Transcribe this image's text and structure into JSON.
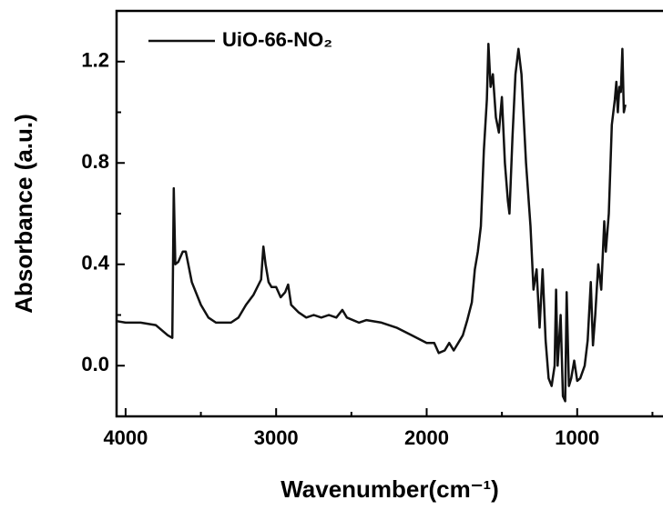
{
  "chart_data": {
    "type": "line",
    "x_label": "Wavenumber(cm⁻¹)",
    "y_label": "Absorbance (a.u.)",
    "xlim": [
      4060,
      436
    ],
    "ylim": [
      -0.2,
      1.4
    ],
    "xticks": [
      4000,
      3000,
      2000,
      1000
    ],
    "yticks": [
      {
        "value": 0,
        "label": "0.0"
      },
      0.4,
      0.8,
      1.2
    ],
    "xminorticks": [
      3500,
      2500,
      1500,
      500
    ],
    "yminorticks": [
      -0.2,
      0.2,
      0.6,
      1.0
    ],
    "legend": "upper left",
    "series": [
      {
        "name": "UiO-66-NO₂",
        "color": "#111111",
        "x": [
          4060,
          4000,
          3900,
          3800,
          3720,
          3690,
          3680,
          3670,
          3650,
          3620,
          3600,
          3560,
          3500,
          3450,
          3400,
          3300,
          3250,
          3200,
          3150,
          3100,
          3085,
          3070,
          3050,
          3030,
          3000,
          2970,
          2940,
          2920,
          2900,
          2850,
          2800,
          2750,
          2700,
          2650,
          2600,
          2560,
          2530,
          2450,
          2400,
          2300,
          2200,
          2100,
          2000,
          1950,
          1920,
          1880,
          1850,
          1820,
          1790,
          1760,
          1730,
          1700,
          1680,
          1660,
          1640,
          1620,
          1600,
          1590,
          1575,
          1560,
          1540,
          1520,
          1500,
          1480,
          1460,
          1450,
          1430,
          1410,
          1390,
          1370,
          1340,
          1310,
          1290,
          1270,
          1250,
          1230,
          1210,
          1190,
          1170,
          1150,
          1140,
          1130,
          1110,
          1095,
          1080,
          1070,
          1055,
          1040,
          1020,
          1000,
          980,
          950,
          930,
          910,
          895,
          880,
          860,
          840,
          820,
          810,
          790,
          770,
          750,
          740,
          730,
          720,
          710,
          700,
          690,
          680
        ],
        "values": [
          0.176,
          0.17,
          0.17,
          0.16,
          0.12,
          0.11,
          0.7,
          0.4,
          0.41,
          0.45,
          0.45,
          0.33,
          0.24,
          0.19,
          0.17,
          0.17,
          0.19,
          0.24,
          0.28,
          0.34,
          0.47,
          0.4,
          0.33,
          0.31,
          0.31,
          0.27,
          0.29,
          0.32,
          0.24,
          0.21,
          0.19,
          0.2,
          0.19,
          0.2,
          0.19,
          0.22,
          0.19,
          0.17,
          0.18,
          0.17,
          0.15,
          0.12,
          0.09,
          0.09,
          0.05,
          0.06,
          0.09,
          0.06,
          0.09,
          0.12,
          0.18,
          0.25,
          0.38,
          0.45,
          0.55,
          0.85,
          1.05,
          1.27,
          1.1,
          1.15,
          0.98,
          0.92,
          1.06,
          0.8,
          0.65,
          0.6,
          0.9,
          1.15,
          1.25,
          1.15,
          0.8,
          0.55,
          0.3,
          0.38,
          0.15,
          0.38,
          0.1,
          -0.05,
          -0.08,
          0.0,
          0.3,
          0.0,
          0.2,
          -0.12,
          -0.14,
          0.29,
          -0.08,
          -0.05,
          0.02,
          -0.06,
          -0.05,
          0.0,
          0.1,
          0.33,
          0.08,
          0.2,
          0.4,
          0.3,
          0.57,
          0.45,
          0.6,
          0.95,
          1.05,
          1.12,
          1.0,
          1.1,
          1.08,
          1.25,
          1.0,
          1.03
        ]
      }
    ]
  }
}
